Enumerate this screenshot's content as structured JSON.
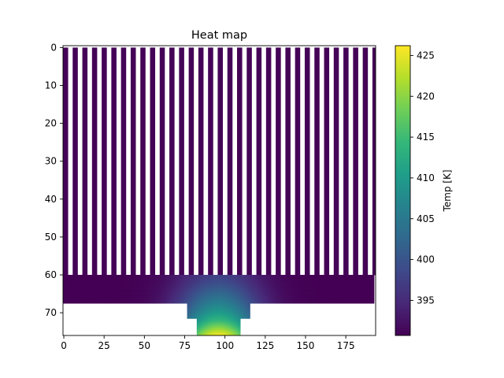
{
  "chart_data": {
    "type": "heatmap",
    "title": "Heat map",
    "xlabel": "",
    "ylabel": "",
    "xlim": [
      -0.5,
      193.5
    ],
    "ylim": [
      76,
      -0.5
    ],
    "x_ticks": [
      0,
      25,
      50,
      75,
      100,
      125,
      150,
      175
    ],
    "y_ticks": [
      0,
      10,
      20,
      30,
      40,
      50,
      60,
      70
    ],
    "grid": false,
    "geometry": {
      "fins": {
        "count": 33,
        "x_start": 0,
        "pitch": 6,
        "width": 3,
        "y_from": 0,
        "y_to": 60
      },
      "base_plate": {
        "x_from": 0,
        "x_to": 193,
        "y_from": 60,
        "y_to": 67.5
      },
      "spreader": {
        "x_from": 77,
        "x_to": 116,
        "y_from": 67.5,
        "y_to": 71.5
      },
      "heat_source": {
        "x_from": 83,
        "x_to": 110,
        "y_from": 71.5,
        "y_to": 76
      }
    },
    "temperature_field": {
      "min": 390.7,
      "max": 426.2,
      "center_x": 96.5,
      "unit": "K",
      "profile": [
        {
          "y": 60,
          "peak": 397.5
        },
        {
          "y": 62,
          "peak": 399
        },
        {
          "y": 64,
          "peak": 401.5
        },
        {
          "y": 66,
          "peak": 404
        },
        {
          "y": 68,
          "peak": 407
        },
        {
          "y": 70,
          "peak": 410
        },
        {
          "y": 72,
          "peak": 414
        },
        {
          "y": 74,
          "peak": 420
        },
        {
          "y": 76,
          "peak": 426
        }
      ]
    },
    "colorbar": {
      "label": "Temp [K]",
      "ticks": [
        395,
        400,
        405,
        410,
        415,
        420,
        425
      ],
      "range": [
        390.7,
        426.2
      ],
      "colormap": "viridis"
    }
  },
  "colors": {
    "viridis_stops": [
      "#440154",
      "#482878",
      "#3e4989",
      "#31688e",
      "#26828e",
      "#1f9e89",
      "#35b779",
      "#6ece58",
      "#b5de2b",
      "#fde725"
    ],
    "axis": "#000000",
    "background": "#ffffff"
  }
}
